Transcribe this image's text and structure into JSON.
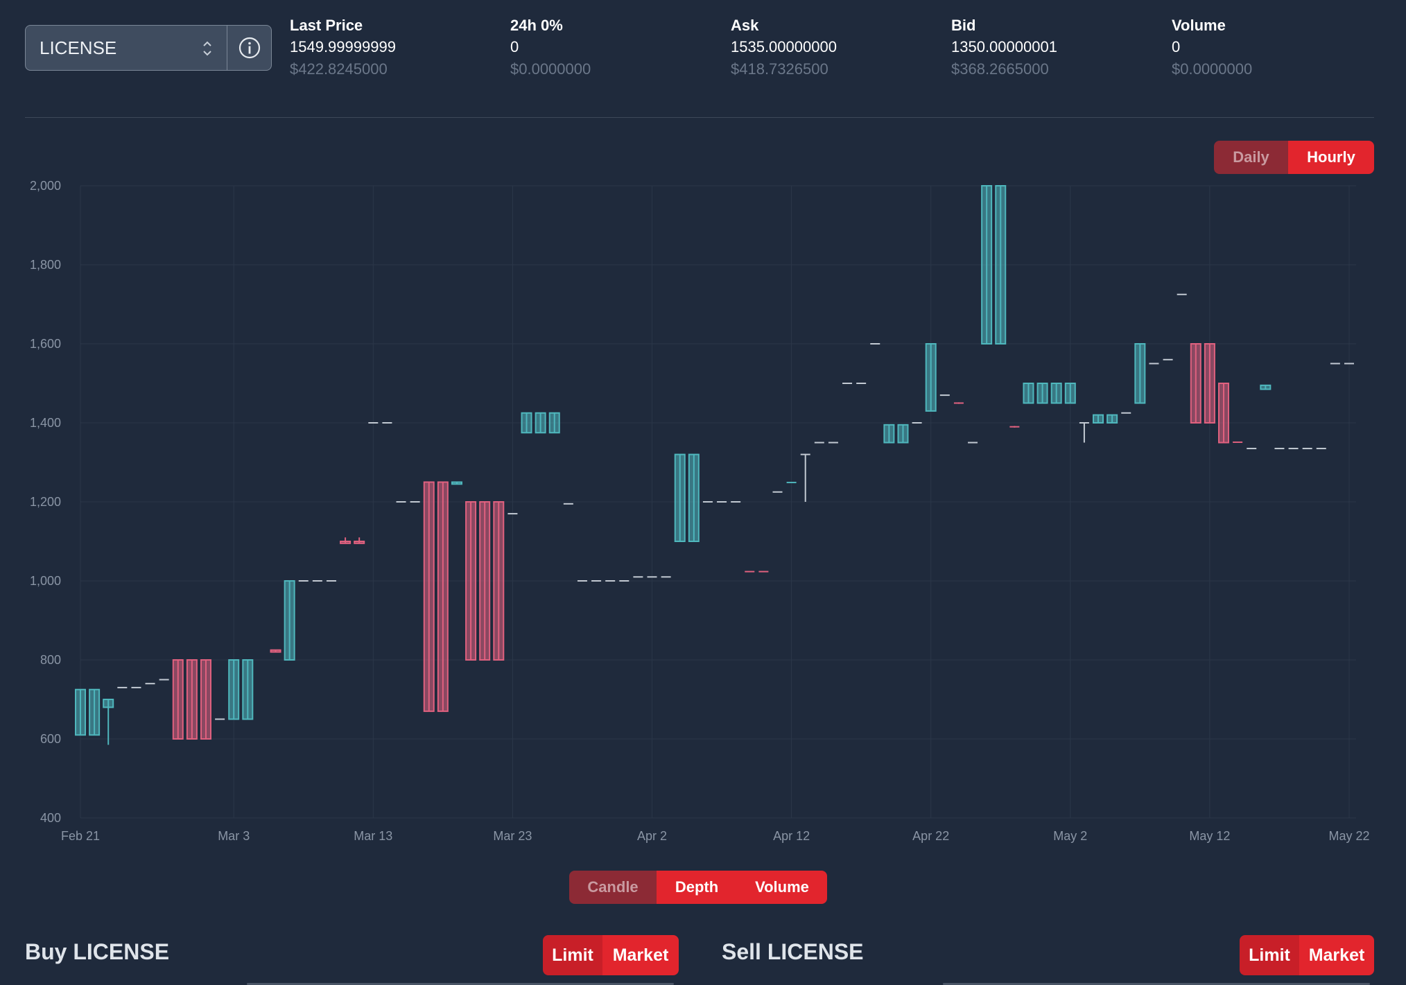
{
  "market": {
    "selected": "LICENSE"
  },
  "stats": [
    {
      "label": "Last Price",
      "value": "1549.99999999",
      "usd": "$422.8245000"
    },
    {
      "label": "24h 0%",
      "value": "0",
      "usd": "$0.0000000"
    },
    {
      "label": "Ask",
      "value": "1535.00000000",
      "usd": "$418.7326500"
    },
    {
      "label": "Bid",
      "value": "1350.00000001",
      "usd": "$368.2665000"
    },
    {
      "label": "Volume",
      "value": "0",
      "usd": "$0.0000000"
    }
  ],
  "period_toggle": {
    "daily": "Daily",
    "hourly": "Hourly",
    "active": "Hourly"
  },
  "view_toggle": {
    "candle": "Candle",
    "depth": "Depth",
    "volume": "Volume",
    "active": "Candle"
  },
  "colors": {
    "up": "#4fb7bd",
    "down": "#e0617f",
    "flat": "#c3cad3",
    "grid": "#2b3749",
    "accent": "#e2252d"
  },
  "buy": {
    "title": "Buy LICENSE",
    "limit": "Limit",
    "market": "Market"
  },
  "sell": {
    "title": "Sell LICENSE",
    "limit": "Limit",
    "market": "Market"
  },
  "chart_data": {
    "type": "candlestick",
    "grid": true,
    "ylim": [
      400,
      2000
    ],
    "y_ticks": [
      "400",
      "600",
      "800",
      "1,000",
      "1,200",
      "1,400",
      "1,600",
      "1,800",
      "2,000"
    ],
    "x_ticks": [
      "Feb 21",
      "Mar 3",
      "Mar 13",
      "Mar 23",
      "Apr 2",
      "Apr 12",
      "Apr 22",
      "May 2",
      "May 12",
      "May 22"
    ],
    "x_tick_dates": [
      "2024-02-21",
      "2024-03-03",
      "2024-03-13",
      "2024-03-23",
      "2024-04-02",
      "2024-04-12",
      "2024-04-22",
      "2024-05-02",
      "2024-05-12",
      "2024-05-22"
    ],
    "candles": [
      {
        "date": "2024-02-21",
        "open": 610,
        "high": 725,
        "low": 610,
        "close": 725
      },
      {
        "date": "2024-02-22",
        "open": 610,
        "high": 725,
        "low": 610,
        "close": 725
      },
      {
        "date": "2024-02-23",
        "open": 680,
        "high": 700,
        "low": 585,
        "close": 700
      },
      {
        "date": "2024-02-24",
        "open": 730,
        "high": 730,
        "low": 730,
        "close": 730
      },
      {
        "date": "2024-02-25",
        "open": 730,
        "high": 730,
        "low": 730,
        "close": 730
      },
      {
        "date": "2024-02-26",
        "open": 740,
        "high": 740,
        "low": 740,
        "close": 740
      },
      {
        "date": "2024-02-27",
        "open": 750,
        "high": 750,
        "low": 750,
        "close": 750
      },
      {
        "date": "2024-02-28",
        "open": 800,
        "high": 800,
        "low": 600,
        "close": 600
      },
      {
        "date": "2024-02-29",
        "open": 800,
        "high": 800,
        "low": 600,
        "close": 600
      },
      {
        "date": "2024-03-01",
        "open": 800,
        "high": 800,
        "low": 600,
        "close": 600
      },
      {
        "date": "2024-03-02",
        "open": 650,
        "high": 650,
        "low": 650,
        "close": 650
      },
      {
        "date": "2024-03-03",
        "open": 650,
        "high": 800,
        "low": 650,
        "close": 800
      },
      {
        "date": "2024-03-04",
        "open": 650,
        "high": 800,
        "low": 650,
        "close": 800
      },
      {
        "date": "2024-03-06",
        "open": 825,
        "high": 825,
        "low": 820,
        "close": 820
      },
      {
        "date": "2024-03-07",
        "open": 800,
        "high": 1000,
        "low": 800,
        "close": 1000
      },
      {
        "date": "2024-03-08",
        "open": 1000,
        "high": 1000,
        "low": 1000,
        "close": 1000
      },
      {
        "date": "2024-03-09",
        "open": 1000,
        "high": 1000,
        "low": 1000,
        "close": 1000
      },
      {
        "date": "2024-03-10",
        "open": 1000,
        "high": 1000,
        "low": 1000,
        "close": 1000
      },
      {
        "date": "2024-03-11",
        "open": 1100,
        "high": 1110,
        "low": 1095,
        "close": 1095
      },
      {
        "date": "2024-03-12",
        "open": 1100,
        "high": 1110,
        "low": 1095,
        "close": 1095
      },
      {
        "date": "2024-03-13",
        "open": 1400,
        "high": 1400,
        "low": 1400,
        "close": 1400
      },
      {
        "date": "2024-03-14",
        "open": 1400,
        "high": 1400,
        "low": 1400,
        "close": 1400
      },
      {
        "date": "2024-03-15",
        "open": 1200,
        "high": 1200,
        "low": 1200,
        "close": 1200
      },
      {
        "date": "2024-03-16",
        "open": 1200,
        "high": 1200,
        "low": 1200,
        "close": 1200
      },
      {
        "date": "2024-03-17",
        "open": 1250,
        "high": 1250,
        "low": 670,
        "close": 670
      },
      {
        "date": "2024-03-18",
        "open": 1250,
        "high": 1250,
        "low": 670,
        "close": 670
      },
      {
        "date": "2024-03-19",
        "open": 1245,
        "high": 1250,
        "low": 1245,
        "close": 1250
      },
      {
        "date": "2024-03-20",
        "open": 1200,
        "high": 1200,
        "low": 800,
        "close": 800
      },
      {
        "date": "2024-03-21",
        "open": 1200,
        "high": 1200,
        "low": 800,
        "close": 800
      },
      {
        "date": "2024-03-22",
        "open": 1200,
        "high": 1200,
        "low": 800,
        "close": 800
      },
      {
        "date": "2024-03-23",
        "open": 1170,
        "high": 1170,
        "low": 1170,
        "close": 1170
      },
      {
        "date": "2024-03-24",
        "open": 1375,
        "high": 1425,
        "low": 1375,
        "close": 1425
      },
      {
        "date": "2024-03-25",
        "open": 1375,
        "high": 1425,
        "low": 1375,
        "close": 1425
      },
      {
        "date": "2024-03-26",
        "open": 1375,
        "high": 1425,
        "low": 1375,
        "close": 1425
      },
      {
        "date": "2024-03-27",
        "open": 1195,
        "high": 1195,
        "low": 1195,
        "close": 1195
      },
      {
        "date": "2024-03-28",
        "open": 1000,
        "high": 1000,
        "low": 1000,
        "close": 1000
      },
      {
        "date": "2024-03-29",
        "open": 1000,
        "high": 1000,
        "low": 1000,
        "close": 1000
      },
      {
        "date": "2024-03-30",
        "open": 1000,
        "high": 1000,
        "low": 1000,
        "close": 1000
      },
      {
        "date": "2024-03-31",
        "open": 1000,
        "high": 1000,
        "low": 1000,
        "close": 1000
      },
      {
        "date": "2024-04-01",
        "open": 1010,
        "high": 1010,
        "low": 1010,
        "close": 1010
      },
      {
        "date": "2024-04-02",
        "open": 1010,
        "high": 1010,
        "low": 1010,
        "close": 1010
      },
      {
        "date": "2024-04-03",
        "open": 1010,
        "high": 1010,
        "low": 1010,
        "close": 1010
      },
      {
        "date": "2024-04-04",
        "open": 1100,
        "high": 1320,
        "low": 1100,
        "close": 1320
      },
      {
        "date": "2024-04-05",
        "open": 1100,
        "high": 1320,
        "low": 1100,
        "close": 1320
      },
      {
        "date": "2024-04-06",
        "open": 1200,
        "high": 1200,
        "low": 1200,
        "close": 1200
      },
      {
        "date": "2024-04-07",
        "open": 1200,
        "high": 1200,
        "low": 1200,
        "close": 1200
      },
      {
        "date": "2024-04-08",
        "open": 1200,
        "high": 1200,
        "low": 1200,
        "close": 1200
      },
      {
        "date": "2024-04-09",
        "open": 1025,
        "high": 1025,
        "low": 1025,
        "close": 1022
      },
      {
        "date": "2024-04-10",
        "open": 1025,
        "high": 1025,
        "low": 1025,
        "close": 1022
      },
      {
        "date": "2024-04-11",
        "open": 1225,
        "high": 1225,
        "low": 1225,
        "close": 1225
      },
      {
        "date": "2024-04-12",
        "open": 1248,
        "high": 1250,
        "low": 1248,
        "close": 1250
      },
      {
        "date": "2024-04-13",
        "open": 1320,
        "high": 1320,
        "low": 1200,
        "close": 1320
      },
      {
        "date": "2024-04-14",
        "open": 1350,
        "high": 1350,
        "low": 1350,
        "close": 1350
      },
      {
        "date": "2024-04-15",
        "open": 1350,
        "high": 1350,
        "low": 1350,
        "close": 1350
      },
      {
        "date": "2024-04-16",
        "open": 1500,
        "high": 1500,
        "low": 1500,
        "close": 1500
      },
      {
        "date": "2024-04-17",
        "open": 1500,
        "high": 1500,
        "low": 1500,
        "close": 1500
      },
      {
        "date": "2024-04-18",
        "open": 1600,
        "high": 1600,
        "low": 1600,
        "close": 1600
      },
      {
        "date": "2024-04-19",
        "open": 1350,
        "high": 1395,
        "low": 1350,
        "close": 1395
      },
      {
        "date": "2024-04-20",
        "open": 1350,
        "high": 1395,
        "low": 1350,
        "close": 1395
      },
      {
        "date": "2024-04-21",
        "open": 1400,
        "high": 1400,
        "low": 1400,
        "close": 1400
      },
      {
        "date": "2024-04-22",
        "open": 1430,
        "high": 1600,
        "low": 1430,
        "close": 1600
      },
      {
        "date": "2024-04-23",
        "open": 1470,
        "high": 1470,
        "low": 1470,
        "close": 1470
      },
      {
        "date": "2024-04-24",
        "open": 1452,
        "high": 1452,
        "low": 1448,
        "close": 1448
      },
      {
        "date": "2024-04-25",
        "open": 1350,
        "high": 1350,
        "low": 1350,
        "close": 1350
      },
      {
        "date": "2024-04-26",
        "open": 1600,
        "high": 2000,
        "low": 1600,
        "close": 2000
      },
      {
        "date": "2024-04-27",
        "open": 1600,
        "high": 2000,
        "low": 1600,
        "close": 2000
      },
      {
        "date": "2024-04-28",
        "open": 1392,
        "high": 1392,
        "low": 1388,
        "close": 1388
      },
      {
        "date": "2024-04-29",
        "open": 1450,
        "high": 1500,
        "low": 1450,
        "close": 1500
      },
      {
        "date": "2024-04-30",
        "open": 1450,
        "high": 1500,
        "low": 1450,
        "close": 1500
      },
      {
        "date": "2024-05-01",
        "open": 1450,
        "high": 1500,
        "low": 1450,
        "close": 1500
      },
      {
        "date": "2024-05-02",
        "open": 1450,
        "high": 1500,
        "low": 1450,
        "close": 1500
      },
      {
        "date": "2024-05-03",
        "open": 1400,
        "high": 1400,
        "low": 1350,
        "close": 1400
      },
      {
        "date": "2024-05-04",
        "open": 1400,
        "high": 1420,
        "low": 1400,
        "close": 1420
      },
      {
        "date": "2024-05-05",
        "open": 1400,
        "high": 1420,
        "low": 1400,
        "close": 1420
      },
      {
        "date": "2024-05-06",
        "open": 1425,
        "high": 1425,
        "low": 1425,
        "close": 1425
      },
      {
        "date": "2024-05-07",
        "open": 1450,
        "high": 1600,
        "low": 1450,
        "close": 1600
      },
      {
        "date": "2024-05-08",
        "open": 1550,
        "high": 1550,
        "low": 1550,
        "close": 1550
      },
      {
        "date": "2024-05-09",
        "open": 1560,
        "high": 1560,
        "low": 1560,
        "close": 1560
      },
      {
        "date": "2024-05-10",
        "open": 1725,
        "high": 1725,
        "low": 1725,
        "close": 1725
      },
      {
        "date": "2024-05-11",
        "open": 1600,
        "high": 1600,
        "low": 1400,
        "close": 1400
      },
      {
        "date": "2024-05-12",
        "open": 1600,
        "high": 1600,
        "low": 1400,
        "close": 1400
      },
      {
        "date": "2024-05-13",
        "open": 1500,
        "high": 1500,
        "low": 1350,
        "close": 1350
      },
      {
        "date": "2024-05-14",
        "open": 1352,
        "high": 1352,
        "low": 1350,
        "close": 1350
      },
      {
        "date": "2024-05-15",
        "open": 1335,
        "high": 1335,
        "low": 1335,
        "close": 1335
      },
      {
        "date": "2024-05-16",
        "open": 1485,
        "high": 1495,
        "low": 1485,
        "close": 1495
      },
      {
        "date": "2024-05-17",
        "open": 1335,
        "high": 1335,
        "low": 1335,
        "close": 1335
      },
      {
        "date": "2024-05-18",
        "open": 1335,
        "high": 1335,
        "low": 1335,
        "close": 1335
      },
      {
        "date": "2024-05-19",
        "open": 1335,
        "high": 1335,
        "low": 1335,
        "close": 1335
      },
      {
        "date": "2024-05-20",
        "open": 1335,
        "high": 1335,
        "low": 1335,
        "close": 1335
      },
      {
        "date": "2024-05-21",
        "open": 1550,
        "high": 1550,
        "low": 1550,
        "close": 1550
      },
      {
        "date": "2024-05-22",
        "open": 1550,
        "high": 1550,
        "low": 1550,
        "close": 1550
      }
    ]
  }
}
